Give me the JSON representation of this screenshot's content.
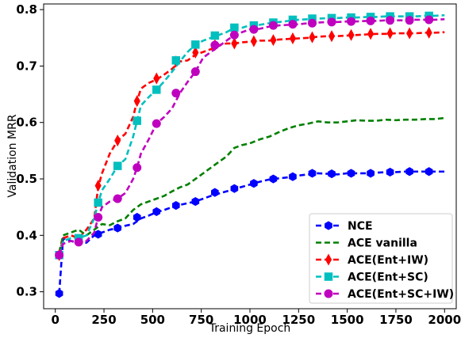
{
  "chart_data": {
    "type": "line",
    "xlabel": "Training Epoch",
    "ylabel": "Validation MRR",
    "xlim": [
      -60,
      2060
    ],
    "ylim": [
      0.27,
      0.81
    ],
    "xticks": [
      0,
      250,
      500,
      750,
      1000,
      1250,
      1500,
      1750,
      2000
    ],
    "yticks": [
      0.3,
      0.4,
      0.5,
      0.6,
      0.7,
      0.8
    ],
    "xtick_labels": [
      "0",
      "250",
      "500",
      "750",
      "1000",
      "1250",
      "1500",
      "1750",
      "2000"
    ],
    "ytick_labels": [
      "0.3",
      "0.4",
      "0.5",
      "0.6",
      "0.7",
      "0.8"
    ],
    "grid": false,
    "legend_position": "lower-right",
    "series": [
      {
        "name": "NCE",
        "color": "#0000ff",
        "marker": "hexagon",
        "x": [
          20,
          40,
          80,
          120,
          160,
          200,
          240,
          280,
          320,
          360,
          400,
          440,
          480,
          520,
          560,
          600,
          640,
          680,
          720,
          760,
          800,
          840,
          880,
          920,
          960,
          1000,
          1050,
          1100,
          1150,
          1200,
          1250,
          1300,
          1350,
          1400,
          1450,
          1500,
          1550,
          1600,
          1650,
          1700,
          1750,
          1800,
          1850,
          1900,
          1950,
          2000
        ],
        "values": [
          0.297,
          0.395,
          0.39,
          0.386,
          0.387,
          0.4,
          0.405,
          0.41,
          0.413,
          0.417,
          0.42,
          0.43,
          0.435,
          0.441,
          0.445,
          0.45,
          0.454,
          0.457,
          0.46,
          0.465,
          0.47,
          0.474,
          0.478,
          0.482,
          0.486,
          0.49,
          0.495,
          0.499,
          0.501,
          0.503,
          0.506,
          0.508,
          0.51,
          0.509,
          0.508,
          0.51,
          0.51,
          0.51,
          0.511,
          0.512,
          0.512,
          0.513,
          0.513,
          0.513,
          0.513,
          0.513
        ],
        "marker_x": [
          20,
          120,
          220,
          320,
          420,
          520,
          620,
          720,
          820,
          920,
          1020,
          1120,
          1220,
          1320,
          1420,
          1520,
          1620,
          1720,
          1820,
          1920
        ],
        "marker_values": [
          0.297,
          0.393,
          0.402,
          0.413,
          0.432,
          0.442,
          0.453,
          0.46,
          0.476,
          0.483,
          0.492,
          0.5,
          0.504,
          0.51,
          0.509,
          0.51,
          0.51,
          0.512,
          0.513,
          0.513
        ]
      },
      {
        "name": "ACE vanilla",
        "color": "#008000",
        "marker": "none",
        "x": [
          20,
          40,
          80,
          120,
          160,
          200,
          240,
          280,
          320,
          360,
          400,
          440,
          480,
          520,
          560,
          600,
          640,
          680,
          720,
          760,
          800,
          840,
          880,
          920,
          960,
          1000,
          1050,
          1100,
          1150,
          1200,
          1250,
          1300,
          1350,
          1400,
          1450,
          1500,
          1550,
          1600,
          1650,
          1700,
          1750,
          1800,
          1850,
          1900,
          1950,
          2000
        ],
        "values": [
          0.37,
          0.4,
          0.405,
          0.41,
          0.4,
          0.41,
          0.42,
          0.418,
          0.425,
          0.43,
          0.445,
          0.455,
          0.46,
          0.465,
          0.47,
          0.478,
          0.485,
          0.49,
          0.5,
          0.51,
          0.52,
          0.53,
          0.54,
          0.555,
          0.56,
          0.563,
          0.57,
          0.575,
          0.583,
          0.59,
          0.595,
          0.598,
          0.602,
          0.6,
          0.6,
          0.602,
          0.604,
          0.603,
          0.603,
          0.605,
          0.604,
          0.605,
          0.605,
          0.606,
          0.606,
          0.608
        ]
      },
      {
        "name": "ACE(Ent+IW)",
        "color": "#ff0000",
        "marker": "thin_diamond",
        "x": [
          20,
          40,
          80,
          120,
          160,
          200,
          220,
          240,
          280,
          320,
          360,
          400,
          420,
          440,
          480,
          520,
          560,
          600,
          640,
          680,
          720,
          760,
          800,
          840,
          880,
          920,
          960,
          1000,
          1050,
          1100,
          1150,
          1200,
          1250,
          1300,
          1350,
          1400,
          1450,
          1500,
          1550,
          1600,
          1650,
          1700,
          1750,
          1800,
          1850,
          1900,
          1950,
          2000
        ],
        "values": [
          0.365,
          0.395,
          0.4,
          0.395,
          0.41,
          0.43,
          0.485,
          0.51,
          0.545,
          0.568,
          0.58,
          0.61,
          0.638,
          0.66,
          0.67,
          0.676,
          0.685,
          0.695,
          0.708,
          0.71,
          0.72,
          0.725,
          0.73,
          0.737,
          0.74,
          0.74,
          0.742,
          0.743,
          0.745,
          0.745,
          0.747,
          0.748,
          0.749,
          0.75,
          0.752,
          0.753,
          0.753,
          0.754,
          0.755,
          0.756,
          0.757,
          0.757,
          0.758,
          0.758,
          0.758,
          0.759,
          0.759,
          0.76
        ],
        "marker_x": [
          20,
          120,
          220,
          320,
          420,
          520,
          620,
          720,
          820,
          920,
          1020,
          1120,
          1220,
          1320,
          1420,
          1520,
          1620,
          1720,
          1820,
          1920
        ],
        "marker_values": [
          0.365,
          0.392,
          0.488,
          0.568,
          0.638,
          0.678,
          0.708,
          0.724,
          0.737,
          0.74,
          0.744,
          0.746,
          0.749,
          0.751,
          0.753,
          0.755,
          0.757,
          0.758,
          0.758,
          0.759
        ]
      },
      {
        "name": "ACE(Ent+SC)",
        "color": "#00bfbf",
        "marker": "square",
        "x": [
          20,
          40,
          80,
          120,
          160,
          200,
          220,
          240,
          280,
          320,
          360,
          400,
          420,
          440,
          480,
          520,
          560,
          600,
          640,
          680,
          720,
          760,
          800,
          840,
          880,
          920,
          960,
          1000,
          1050,
          1100,
          1150,
          1200,
          1250,
          1300,
          1350,
          1400,
          1450,
          1500,
          1550,
          1600,
          1650,
          1700,
          1750,
          1800,
          1850,
          1900,
          1950,
          2000
        ],
        "values": [
          0.365,
          0.39,
          0.395,
          0.395,
          0.4,
          0.43,
          0.458,
          0.48,
          0.5,
          0.523,
          0.535,
          0.575,
          0.603,
          0.63,
          0.645,
          0.658,
          0.673,
          0.69,
          0.708,
          0.725,
          0.738,
          0.745,
          0.75,
          0.755,
          0.76,
          0.768,
          0.768,
          0.772,
          0.773,
          0.776,
          0.778,
          0.78,
          0.782,
          0.783,
          0.784,
          0.785,
          0.785,
          0.786,
          0.786,
          0.787,
          0.787,
          0.788,
          0.788,
          0.788,
          0.788,
          0.789,
          0.789,
          0.79
        ],
        "marker_x": [
          20,
          120,
          220,
          320,
          420,
          520,
          620,
          720,
          820,
          920,
          1020,
          1120,
          1220,
          1320,
          1420,
          1520,
          1620,
          1720,
          1820,
          1920
        ],
        "marker_values": [
          0.365,
          0.395,
          0.458,
          0.523,
          0.603,
          0.658,
          0.71,
          0.738,
          0.754,
          0.768,
          0.772,
          0.777,
          0.782,
          0.784,
          0.785,
          0.786,
          0.787,
          0.788,
          0.788,
          0.789
        ]
      },
      {
        "name": "ACE(Ent+SC+IW)",
        "color": "#bf00bf",
        "marker": "circle",
        "x": [
          20,
          40,
          80,
          120,
          160,
          200,
          220,
          240,
          280,
          320,
          360,
          400,
          420,
          440,
          480,
          520,
          560,
          600,
          640,
          680,
          720,
          760,
          800,
          840,
          880,
          920,
          960,
          1000,
          1050,
          1100,
          1150,
          1200,
          1250,
          1300,
          1350,
          1400,
          1450,
          1500,
          1550,
          1600,
          1650,
          1700,
          1750,
          1800,
          1850,
          1900,
          1950,
          2000
        ],
        "values": [
          0.365,
          0.385,
          0.39,
          0.388,
          0.39,
          0.405,
          0.432,
          0.45,
          0.46,
          0.465,
          0.475,
          0.5,
          0.52,
          0.545,
          0.57,
          0.598,
          0.61,
          0.625,
          0.652,
          0.672,
          0.69,
          0.715,
          0.725,
          0.735,
          0.745,
          0.755,
          0.76,
          0.765,
          0.766,
          0.77,
          0.772,
          0.773,
          0.774,
          0.776,
          0.777,
          0.778,
          0.778,
          0.779,
          0.779,
          0.78,
          0.78,
          0.781,
          0.781,
          0.781,
          0.782,
          0.782,
          0.782,
          0.783
        ],
        "marker_x": [
          20,
          120,
          220,
          320,
          420,
          520,
          620,
          720,
          820,
          920,
          1020,
          1120,
          1220,
          1320,
          1420,
          1520,
          1620,
          1720,
          1820,
          1920
        ],
        "marker_values": [
          0.365,
          0.388,
          0.432,
          0.465,
          0.52,
          0.598,
          0.652,
          0.69,
          0.737,
          0.755,
          0.765,
          0.772,
          0.774,
          0.776,
          0.778,
          0.779,
          0.78,
          0.781,
          0.781,
          0.782
        ]
      }
    ]
  }
}
